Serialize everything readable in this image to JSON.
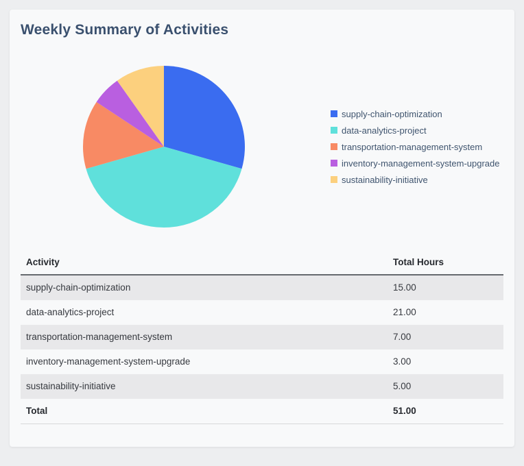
{
  "card": {
    "title": "Weekly Summary of Activities"
  },
  "chart_data": {
    "type": "pie",
    "title": "Weekly Summary of Activities",
    "labels": [
      "supply-chain-optimization",
      "data-analytics-project",
      "transportation-management-system",
      "inventory-management-system-upgrade",
      "sustainability-initiative"
    ],
    "values": [
      15,
      21,
      7,
      3,
      5
    ],
    "colors": [
      "#3a6cf0",
      "#5fe0db",
      "#f88a64",
      "#b95fe0",
      "#fcd07e"
    ],
    "total": 51,
    "start_angle": "top",
    "direction": "clockwise",
    "legend_position": "right"
  },
  "table": {
    "columns": [
      "Activity",
      "Total Hours"
    ],
    "rows": [
      {
        "activity": "supply-chain-optimization",
        "hours": "15.00"
      },
      {
        "activity": "data-analytics-project",
        "hours": "21.00"
      },
      {
        "activity": "transportation-management-system",
        "hours": "7.00"
      },
      {
        "activity": "inventory-management-system-upgrade",
        "hours": "3.00"
      },
      {
        "activity": "sustainability-initiative",
        "hours": "5.00"
      }
    ],
    "total_row": {
      "label": "Total",
      "hours": "51.00"
    }
  },
  "theme": {
    "page_bg": "#edeef0",
    "card_bg": "#f8f9fa",
    "title_color": "#3a506e",
    "legend_text": "#3f546e",
    "header_text": "#26292e",
    "row_text": "#36393f",
    "row_alt_bg": "#e8e8ea",
    "header_border": "#65696e",
    "total_border": "#d7d8da"
  }
}
